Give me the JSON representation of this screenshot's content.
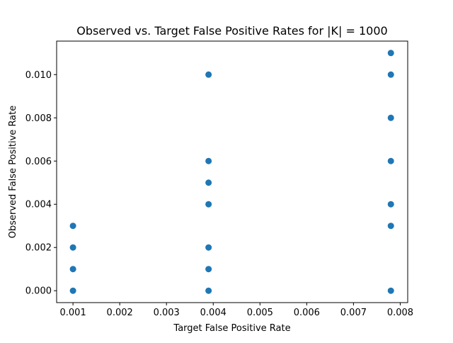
{
  "chart_data": {
    "type": "scatter",
    "title": "Observed vs. Target False Positive Rates for |K| = 1000",
    "xlabel": "Target False Positive Rate",
    "ylabel": "Observed False Positive Rate",
    "xlim": [
      0.00065,
      0.00816
    ],
    "ylim": [
      -0.00055,
      0.01155
    ],
    "xticks": [
      0.001,
      0.002,
      0.003,
      0.004,
      0.005,
      0.006,
      0.007,
      0.008
    ],
    "xtick_labels": [
      "0.001",
      "0.002",
      "0.003",
      "0.004",
      "0.005",
      "0.006",
      "0.007",
      "0.008"
    ],
    "yticks": [
      0.0,
      0.002,
      0.004,
      0.006,
      0.008,
      0.01
    ],
    "ytick_labels": [
      "0.000",
      "0.002",
      "0.004",
      "0.006",
      "0.008",
      "0.010"
    ],
    "grid": false,
    "legend": "none",
    "marker_color": "#1f77b4",
    "points": [
      {
        "x": 0.001,
        "y": 0.0
      },
      {
        "x": 0.001,
        "y": 0.001
      },
      {
        "x": 0.001,
        "y": 0.002
      },
      {
        "x": 0.001,
        "y": 0.003
      },
      {
        "x": 0.0039,
        "y": 0.0
      },
      {
        "x": 0.0039,
        "y": 0.001
      },
      {
        "x": 0.0039,
        "y": 0.002
      },
      {
        "x": 0.0039,
        "y": 0.004
      },
      {
        "x": 0.0039,
        "y": 0.005
      },
      {
        "x": 0.0039,
        "y": 0.006
      },
      {
        "x": 0.0039,
        "y": 0.01
      },
      {
        "x": 0.0078,
        "y": 0.0
      },
      {
        "x": 0.0078,
        "y": 0.003
      },
      {
        "x": 0.0078,
        "y": 0.004
      },
      {
        "x": 0.0078,
        "y": 0.006
      },
      {
        "x": 0.0078,
        "y": 0.008
      },
      {
        "x": 0.0078,
        "y": 0.01
      },
      {
        "x": 0.0078,
        "y": 0.011
      }
    ]
  }
}
